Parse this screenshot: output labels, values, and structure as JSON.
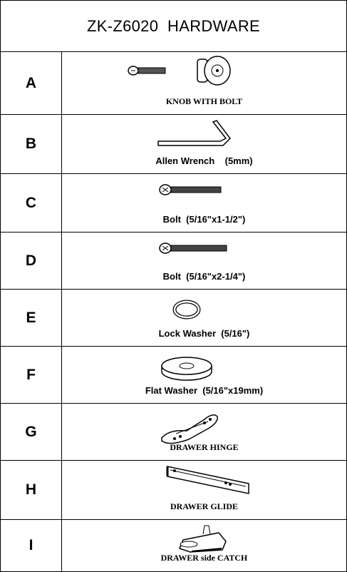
{
  "header": {
    "title": "ZK-Z6020  HARDWARE"
  },
  "items": [
    {
      "letter": "A",
      "label": "KNOB WITH BOLT"
    },
    {
      "letter": "B",
      "label": "Allen Wrench    (5mm)"
    },
    {
      "letter": "C",
      "label": "Bolt  (5/16\"x1-1/2\")"
    },
    {
      "letter": "D",
      "label": "Bolt  (5/16\"x2-1/4\")"
    },
    {
      "letter": "E",
      "label": "Lock Washer  (5/16\")"
    },
    {
      "letter": "F",
      "label": "Flat Washer  (5/16\"x19mm)"
    },
    {
      "letter": "G",
      "label": "DRAWER HINGE"
    },
    {
      "letter": "H",
      "label": "DRAWER GLIDE"
    },
    {
      "letter": "I",
      "label": "DRAWER side CATCH"
    }
  ]
}
